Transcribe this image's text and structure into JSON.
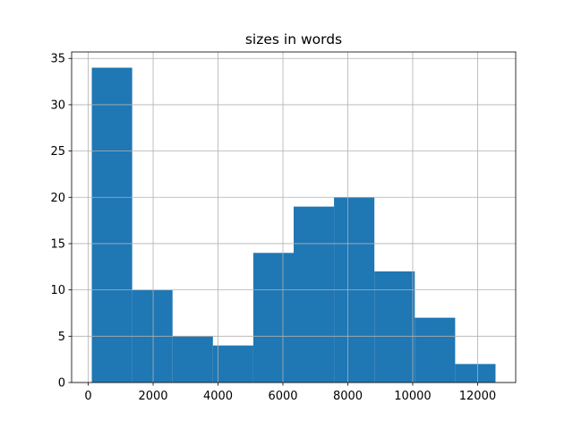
{
  "chart_data": {
    "type": "histogram",
    "title": "sizes in words",
    "bins": [
      110,
      1354,
      2598,
      3843,
      5087,
      6331,
      7575,
      8819,
      10064,
      11308,
      12552
    ],
    "values": [
      34,
      10,
      5,
      4,
      14,
      19,
      20,
      12,
      7,
      2
    ],
    "color": "#1f77b4",
    "xlim": [
      -512,
      13174
    ],
    "xticks": [
      0,
      2000,
      4000,
      6000,
      8000,
      10000,
      12000
    ],
    "ylim": [
      0,
      35.7
    ],
    "yticks": [
      0,
      5,
      10,
      15,
      20,
      25,
      30,
      35
    ],
    "grid": true
  }
}
